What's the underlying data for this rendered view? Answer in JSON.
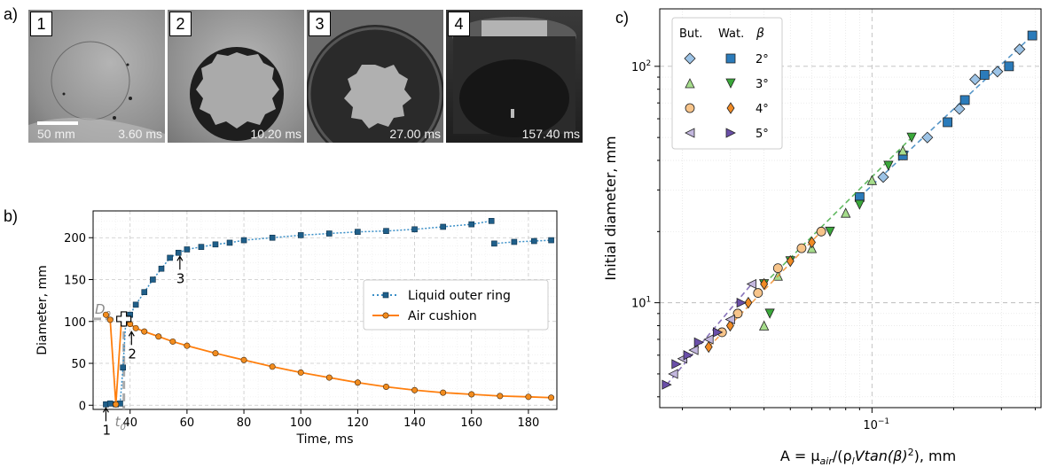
{
  "panel_labels": {
    "a": "a)",
    "b": "b)",
    "c": "c)"
  },
  "photos": [
    {
      "num": "1",
      "time": "3.60 ms",
      "scale": "50 mm"
    },
    {
      "num": "2",
      "time": "10.20 ms"
    },
    {
      "num": "3",
      "time": "27.00 ms"
    },
    {
      "num": "4",
      "time": "157.40 ms"
    }
  ],
  "colors": {
    "ring": "#1f5f8a",
    "cushion": "#f28c1e",
    "orange": "#ff7f0e"
  },
  "chart_data": [
    {
      "type": "scatter",
      "xlabel": "Time, ms",
      "ylabel": "Diameter, mm",
      "xlim": [
        27,
        190
      ],
      "ylim": [
        -5,
        232
      ],
      "xticks": [
        40,
        60,
        80,
        100,
        120,
        140,
        160,
        180
      ],
      "yticks": [
        0,
        50,
        100,
        150,
        200
      ],
      "grid": true,
      "legend_position": "center-right",
      "series": [
        {
          "name": "Liquid outer ring",
          "x": [
            31.5,
            33,
            35,
            36.5,
            37.5,
            38.5,
            40,
            42,
            45,
            48,
            51,
            54,
            57,
            60,
            65,
            70,
            75,
            80,
            90,
            100,
            110,
            120,
            130,
            140,
            150,
            160,
            167,
            168,
            175,
            182,
            188
          ],
          "y": [
            1,
            2,
            1,
            2,
            45,
            101,
            108,
            120,
            135,
            150,
            163,
            176,
            182,
            186,
            189,
            192,
            194,
            197,
            200,
            203,
            205,
            207,
            208,
            210,
            213,
            216,
            220,
            193,
            195,
            196,
            197
          ]
        },
        {
          "name": "Air cushion",
          "x": [
            31.5,
            33,
            35,
            37,
            39,
            40,
            42,
            45,
            50,
            55,
            60,
            70,
            80,
            90,
            100,
            110,
            120,
            130,
            140,
            150,
            160,
            170,
            180,
            188
          ],
          "y": [
            108,
            102,
            1,
            103,
            100,
            97,
            92,
            88,
            82,
            76,
            71,
            62,
            54,
            46,
            39,
            33,
            27,
            22,
            18,
            15,
            13,
            11,
            10,
            9
          ]
        }
      ],
      "annotations": [
        {
          "text": "1",
          "x": 31.5,
          "y": 1
        },
        {
          "text": "2",
          "x": 40.5,
          "y": 92
        },
        {
          "text": "3",
          "x": 57.5,
          "y": 182
        }
      ],
      "guide_labels": {
        "d0": "D",
        "d0_sub": "0",
        "t0": "t",
        "t0_sub": "0"
      },
      "guide_point": {
        "x": 37.8,
        "y": 103
      }
    },
    {
      "type": "scatter",
      "xlabel_prefix": "A = μ",
      "xlabel_sub1": "air",
      "xlabel_mid": "/(ρ",
      "xlabel_sub2": "l",
      "xlabel_rest": "Vtan(β)",
      "xlabel_sup": "2",
      "xlabel_end": "), mm",
      "ylabel": "Initial diameter, mm",
      "xscale": "log",
      "yscale": "log",
      "xlim": [
        0.0165,
        0.42
      ],
      "ylim": [
        3.6,
        175
      ],
      "major_xtick": {
        "base": "10",
        "exp": "−1",
        "value": 0.1
      },
      "major_yticks": [
        {
          "base": "10",
          "exp": "1",
          "value": 10
        },
        {
          "base": "10",
          "exp": "2",
          "value": 100
        }
      ],
      "grid": true,
      "legend_position": "top-left",
      "legend_headers": {
        "but": "But.",
        "wat": "Wat.",
        "beta": "β"
      },
      "legend_rows": [
        {
          "beta": "2°",
          "but_marker": "diamond",
          "wat_marker": "square",
          "color": "#2b7bba",
          "light": "#9cc3e6"
        },
        {
          "beta": "3°",
          "but_marker": "triangle-up",
          "wat_marker": "triangle-down",
          "color": "#3aa83a",
          "light": "#a6dc8c"
        },
        {
          "beta": "4°",
          "but_marker": "circle",
          "wat_marker": "thin-diamond",
          "color": "#f08a24",
          "light": "#f7c48a"
        },
        {
          "beta": "5°",
          "but_marker": "triangle-left",
          "wat_marker": "triangle-right",
          "color": "#6a4fa8",
          "light": "#c3b7de"
        }
      ],
      "series": [
        {
          "name": "2°",
          "x": [
            0.09,
            0.11,
            0.13,
            0.16,
            0.19,
            0.21,
            0.22,
            0.24,
            0.26,
            0.29,
            0.32,
            0.35,
            0.39
          ],
          "y": [
            28,
            34,
            42,
            50,
            58,
            66,
            72,
            88,
            92,
            95,
            100,
            118,
            135
          ]
        },
        {
          "name": "3°",
          "x": [
            0.04,
            0.045,
            0.05,
            0.06,
            0.07,
            0.08,
            0.09,
            0.1,
            0.115,
            0.13,
            0.14,
            0.04,
            0.042
          ],
          "y": [
            12,
            13,
            15,
            17,
            20,
            24,
            26,
            33,
            38,
            44,
            50,
            8,
            9
          ]
        },
        {
          "name": "4°",
          "x": [
            0.025,
            0.028,
            0.03,
            0.032,
            0.035,
            0.038,
            0.04,
            0.045,
            0.05,
            0.055,
            0.06,
            0.065
          ],
          "y": [
            6.5,
            7.5,
            8,
            9,
            10,
            11,
            12,
            14,
            15,
            17,
            18,
            20
          ]
        },
        {
          "name": "5°",
          "x": [
            0.0175,
            0.0185,
            0.019,
            0.02,
            0.021,
            0.022,
            0.023,
            0.025,
            0.027,
            0.03,
            0.033,
            0.036
          ],
          "y": [
            4.5,
            5,
            5.5,
            5.8,
            6,
            6.3,
            6.8,
            7,
            7.5,
            8.5,
            10,
            12
          ]
        }
      ]
    }
  ]
}
